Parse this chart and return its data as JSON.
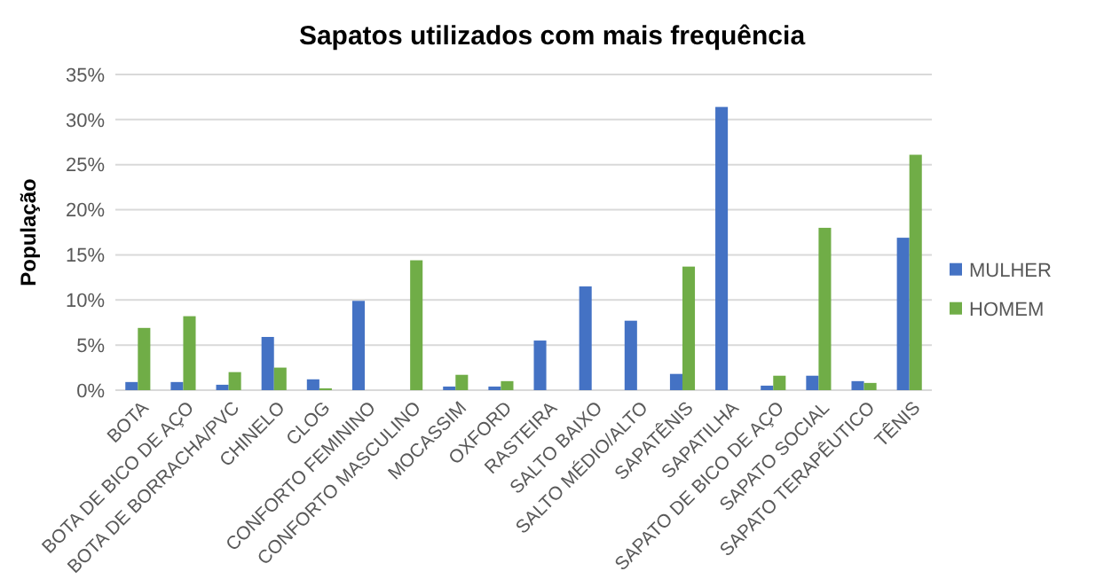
{
  "chart_data": {
    "type": "bar",
    "title": "Sapatos utilizados com mais frequência",
    "ylabel": "População",
    "categories": [
      "BOTA",
      "BOTA DE BICO DE AÇO",
      "BOTA DE BORRACHA/PVC",
      "CHINELO",
      "CLOG",
      "CONFORTO FEMININO",
      "CONFORTO MASCULINO",
      "MOCASSIM",
      "OXFORD",
      "RASTEIRA",
      "SALTO BAIXO",
      "SALTO MÉDIO/ALTO",
      "SAPATÊNIS",
      "SAPATILHA",
      "SAPATO DE BICO DE AÇO",
      "SAPATO SOCIAL",
      "SAPATO TERAPÊUTICO",
      "TÊNIS"
    ],
    "series": [
      {
        "name": "MULHER",
        "color": "#4472c4",
        "values": [
          0.9,
          0.9,
          0.6,
          5.9,
          1.2,
          9.9,
          0,
          0.4,
          0.4,
          5.5,
          11.5,
          7.7,
          1.8,
          31.4,
          0.5,
          1.6,
          1.0,
          16.9
        ]
      },
      {
        "name": "HOMEM",
        "color": "#70ad47",
        "values": [
          6.9,
          8.2,
          2.0,
          2.5,
          0.2,
          0,
          14.4,
          1.7,
          1.0,
          0,
          0,
          0,
          13.7,
          0,
          1.6,
          18.0,
          0.8,
          26.1
        ]
      }
    ],
    "ylim": [
      0,
      35
    ],
    "yticks": [
      {
        "value": 0,
        "label": "0%"
      },
      {
        "value": 5,
        "label": "5%"
      },
      {
        "value": 10,
        "label": "10%"
      },
      {
        "value": 15,
        "label": "15%"
      },
      {
        "value": 20,
        "label": "20%"
      },
      {
        "value": 25,
        "label": "25%"
      },
      {
        "value": 30,
        "label": "30%"
      },
      {
        "value": 35,
        "label": "35%"
      }
    ],
    "grid": "y",
    "legend": "right"
  }
}
